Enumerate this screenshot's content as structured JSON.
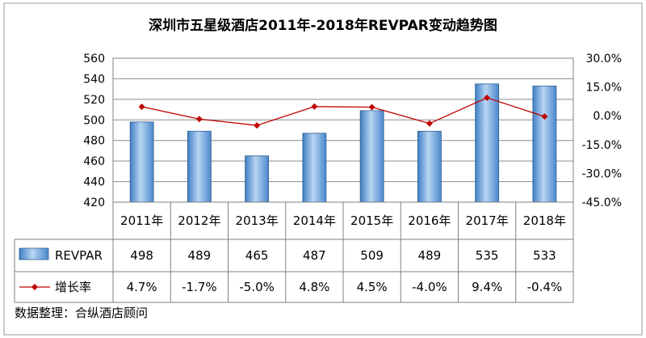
{
  "chart_data": {
    "type": "bar+line",
    "title": "深圳市五星级酒店2011年-2018年REVPAR变动趋势图",
    "categories": [
      "2011年",
      "2012年",
      "2013年",
      "2014年",
      "2015年",
      "2016年",
      "2017年",
      "2018年"
    ],
    "series": [
      {
        "name": "REVPAR",
        "type": "bar",
        "axis": "left",
        "values": [
          498,
          489,
          465,
          487,
          509,
          489,
          535,
          533
        ],
        "labels": [
          "498",
          "489",
          "465",
          "487",
          "509",
          "489",
          "535",
          "533"
        ],
        "color": "#5b9bd5"
      },
      {
        "name": "增长率",
        "type": "line",
        "axis": "right",
        "values": [
          4.7,
          -1.7,
          -5.0,
          4.8,
          4.5,
          -4.0,
          9.4,
          -0.4
        ],
        "labels": [
          "4.7%",
          "-1.7%",
          "-5.0%",
          "4.8%",
          "4.5%",
          "-4.0%",
          "9.4%",
          "-0.4%"
        ],
        "color": "#c00000"
      }
    ],
    "y_left": {
      "min": 420,
      "max": 560,
      "ticks": [
        "560",
        "540",
        "520",
        "500",
        "480",
        "460",
        "440",
        "420"
      ]
    },
    "y_right": {
      "min": -45,
      "max": 30,
      "ticks": [
        "30.0%",
        "15.0%",
        "0.0%",
        "-15.0%",
        "-30.0%",
        "-45.0%"
      ]
    },
    "grid": true,
    "legend_placement": "data-table",
    "source": "数据整理：合纵酒店顾问"
  }
}
